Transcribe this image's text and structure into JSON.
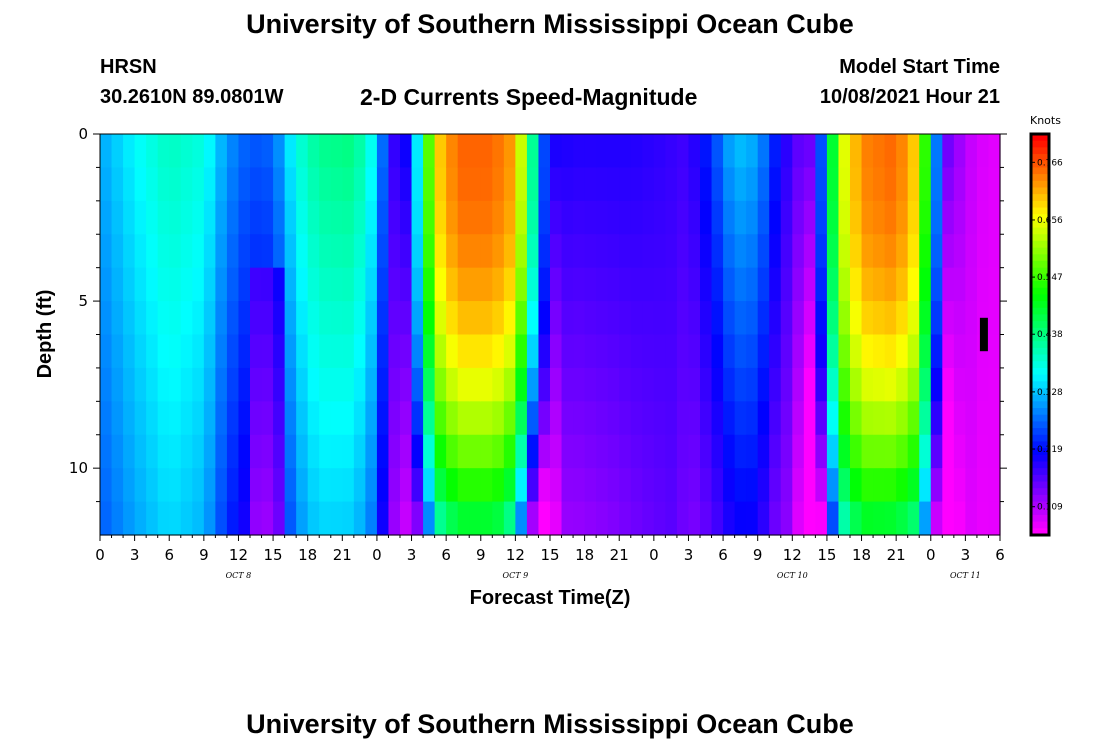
{
  "header": {
    "title": "University of Southern Mississippi Ocean Cube",
    "footer_title": "University of Southern Mississippi Ocean Cube",
    "station": "HRSN",
    "coords": "30.2610N  89.0801W",
    "plot_title": "2-D Currents Speed-Magnitude",
    "model_label": "Model Start Time",
    "model_time": "10/08/2021 Hour 21"
  },
  "chart_data": {
    "type": "heatmap",
    "title": "2-D Currents Speed-Magnitude",
    "xlabel": "Forecast Time(Z)",
    "ylabel": "Depth (ft)",
    "ylim": [
      0,
      12
    ],
    "xlim_hours": [
      0,
      78
    ],
    "x_tick_labels": [
      "0",
      "3",
      "6",
      "9",
      "12",
      "15",
      "18",
      "21",
      "0",
      "3",
      "6",
      "9",
      "12",
      "15",
      "18",
      "21",
      "0",
      "3",
      "6",
      "9",
      "12",
      "15",
      "18",
      "21",
      "0",
      "3",
      "6"
    ],
    "y_ticks": [
      0,
      5,
      10
    ],
    "y_tick_labels": [
      "0",
      "5",
      "10"
    ],
    "date_labels": [
      {
        "label": "OCT 8",
        "hour": 12
      },
      {
        "label": "OCT 9",
        "hour": 36
      },
      {
        "label": "OCT 10",
        "hour": 60
      },
      {
        "label": "OCT 11",
        "hour": 75
      }
    ],
    "colorbar": {
      "unit": "Knots",
      "range": [
        0.055,
        0.82
      ],
      "tick_values": [
        0.766,
        0.656,
        0.547,
        0.438,
        0.328,
        0.219,
        0.109
      ],
      "tick_labels": [
        "0.766",
        "0.656",
        "0.547",
        "0.438",
        "0.328",
        "0.219",
        "0.109"
      ]
    },
    "grid": {
      "nx": 78,
      "ny": 12,
      "x_step_hours": 1,
      "y_step_ft": 1
    },
    "surface_speed_keypoints": [
      [
        0,
        0.31
      ],
      [
        3,
        0.36
      ],
      [
        6,
        0.4
      ],
      [
        9,
        0.38
      ],
      [
        11,
        0.3
      ],
      [
        13,
        0.26
      ],
      [
        15,
        0.27
      ],
      [
        17,
        0.38
      ],
      [
        19,
        0.43
      ],
      [
        22,
        0.44
      ],
      [
        24,
        0.35
      ],
      [
        25,
        0.2
      ],
      [
        26,
        0.16
      ],
      [
        27,
        0.25
      ],
      [
        28,
        0.45
      ],
      [
        29,
        0.68
      ],
      [
        31,
        0.76
      ],
      [
        34,
        0.76
      ],
      [
        36,
        0.72
      ],
      [
        37,
        0.55
      ],
      [
        38,
        0.3
      ],
      [
        39,
        0.2
      ],
      [
        41,
        0.19
      ],
      [
        43,
        0.19
      ],
      [
        46,
        0.19
      ],
      [
        49,
        0.18
      ],
      [
        51,
        0.17
      ],
      [
        53,
        0.24
      ],
      [
        55,
        0.33
      ],
      [
        57,
        0.31
      ],
      [
        59,
        0.2
      ],
      [
        61,
        0.14
      ],
      [
        62,
        0.16
      ],
      [
        63,
        0.35
      ],
      [
        64,
        0.62
      ],
      [
        66,
        0.74
      ],
      [
        69,
        0.76
      ],
      [
        71,
        0.68
      ],
      [
        72,
        0.4
      ],
      [
        73,
        0.16
      ],
      [
        75,
        0.1
      ],
      [
        76,
        0.08
      ],
      [
        78,
        0.07
      ]
    ],
    "depth_gradient_keypoints": [
      [
        0,
        -0.05
      ],
      [
        12,
        -0.07
      ],
      [
        15,
        -0.1
      ],
      [
        18,
        -0.09
      ],
      [
        22,
        -0.11
      ],
      [
        26,
        -0.06
      ],
      [
        28,
        -0.3
      ],
      [
        31,
        -0.3
      ],
      [
        35,
        -0.3
      ],
      [
        37,
        -0.4
      ],
      [
        40,
        -0.08
      ],
      [
        45,
        -0.06
      ],
      [
        50,
        -0.02
      ],
      [
        55,
        -0.13
      ],
      [
        58,
        -0.1
      ],
      [
        60,
        -0.05
      ],
      [
        63,
        -0.25
      ],
      [
        66,
        -0.27
      ],
      [
        69,
        -0.3
      ],
      [
        72,
        -0.25
      ],
      [
        75,
        -0.02
      ],
      [
        78,
        0.0
      ]
    ],
    "marker": {
      "hour": 76,
      "depth_top": 5.5,
      "depth_bottom": 6.5
    }
  }
}
